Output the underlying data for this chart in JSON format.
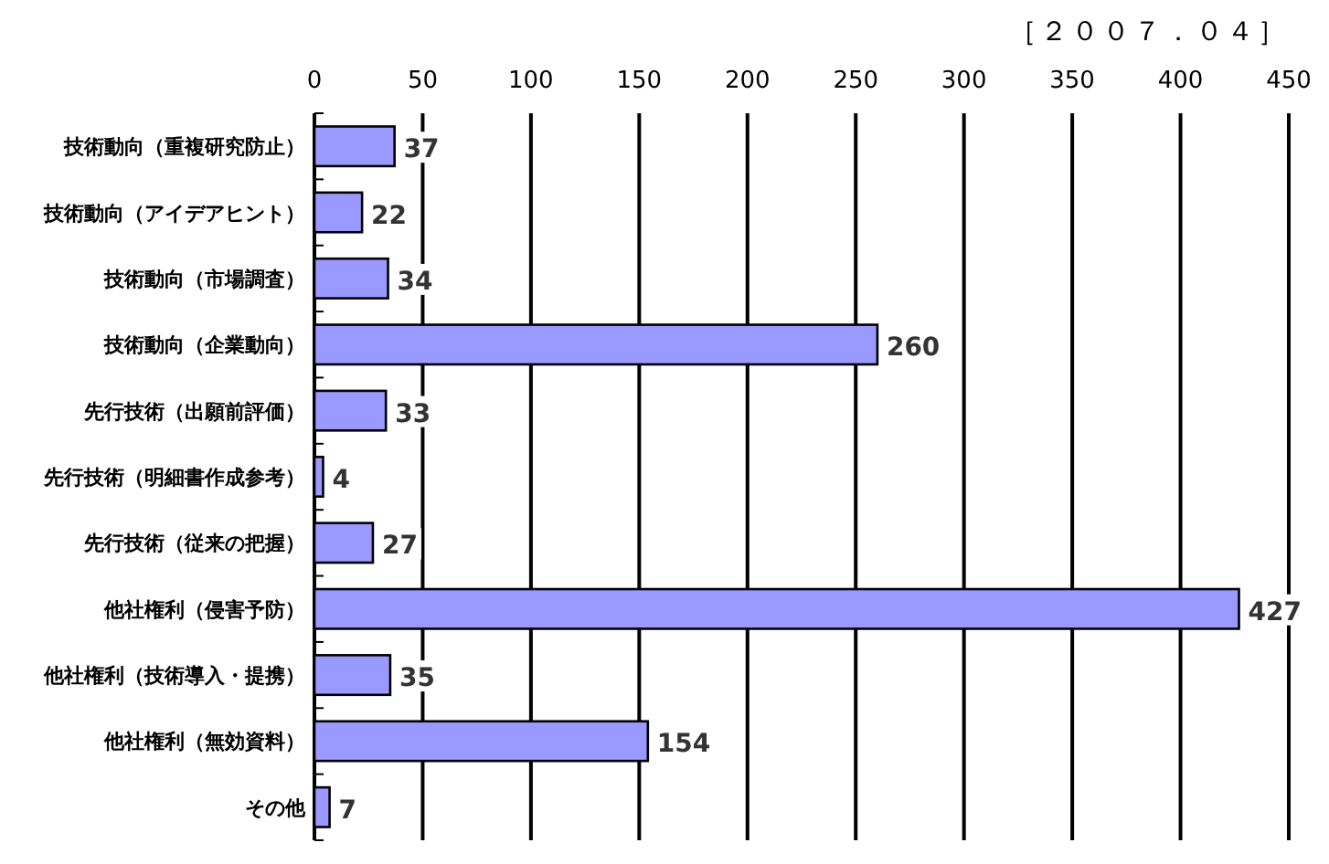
{
  "chart_data": {
    "type": "bar",
    "orientation": "horizontal",
    "title": "［２００７．０４］",
    "categories": [
      "技術動向（重複研究防止）",
      "技術動向（アイデアヒント）",
      "技術動向（市場調査）",
      "技術動向（企業動向）",
      "先行技術（出願前評価）",
      "先行技術（明細書作成参考）",
      "先行技術（従来の把握）",
      "他社権利（侵害予防）",
      "他社権利（技術導入・提携）",
      "他社権利（無効資料）",
      "その他"
    ],
    "values": [
      37,
      22,
      34,
      260,
      33,
      4,
      27,
      427,
      35,
      154,
      7
    ],
    "color": "#9999ff",
    "xlim": [
      0,
      450
    ],
    "xticks": [
      0,
      50,
      100,
      150,
      200,
      250,
      300,
      350,
      400,
      450
    ],
    "grid": "x",
    "data_labels": true
  }
}
